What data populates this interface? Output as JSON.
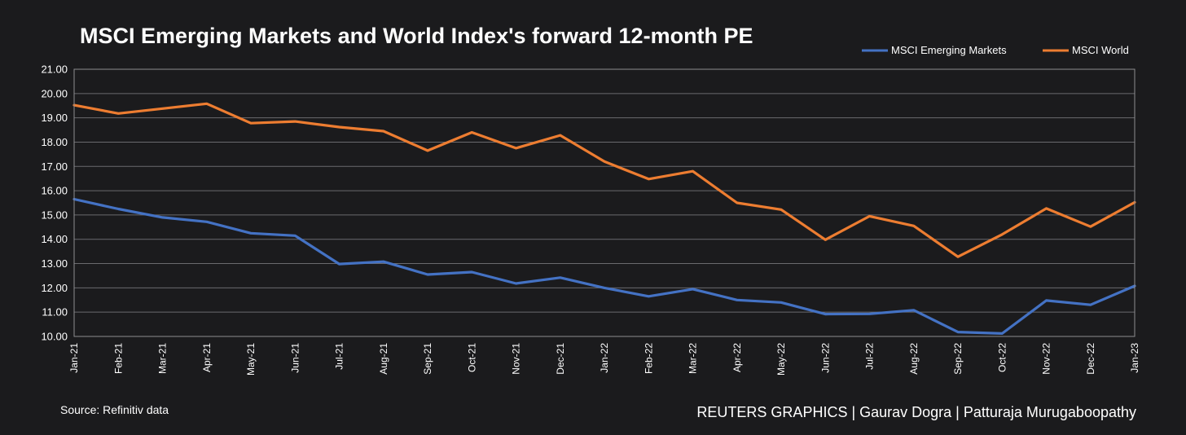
{
  "chart_data": {
    "type": "line",
    "title": "MSCI Emerging Markets and World Index's forward 12-month PE",
    "xlabel": "",
    "ylabel": "",
    "ylim": [
      10,
      21
    ],
    "yticks": [
      "21.00",
      "20.00",
      "19.00",
      "18.00",
      "17.00",
      "16.00",
      "15.00",
      "14.00",
      "13.00",
      "12.00",
      "11.00",
      "10.00"
    ],
    "categories": [
      "Jan-21",
      "Feb-21",
      "Mar-21",
      "Apr-21",
      "May-21",
      "Jun-21",
      "Jul-21",
      "Aug-21",
      "Sep-21",
      "Oct-21",
      "Nov-21",
      "Dec-21",
      "Jan-22",
      "Feb-22",
      "Mar-22",
      "Apr-22",
      "May-22",
      "Jun-22",
      "Jul-22",
      "Aug-22",
      "Sep-22",
      "Oct-22",
      "Nov-22",
      "Dec-22",
      "Jan-23"
    ],
    "series": [
      {
        "name": "MSCI Emerging Markets",
        "color": "#4472c4",
        "values": [
          15.65,
          15.25,
          14.9,
          14.72,
          14.25,
          14.15,
          12.98,
          13.08,
          12.55,
          12.65,
          12.18,
          12.42,
          12.0,
          11.65,
          11.95,
          11.5,
          11.4,
          10.92,
          10.93,
          11.08,
          10.18,
          10.12,
          11.48,
          11.3,
          12.08
        ]
      },
      {
        "name": "MSCI World",
        "color": "#ed7d31",
        "values": [
          19.52,
          19.18,
          19.38,
          19.58,
          18.78,
          18.85,
          18.62,
          18.45,
          17.65,
          18.4,
          17.75,
          18.28,
          17.2,
          16.48,
          16.8,
          15.5,
          15.22,
          13.98,
          14.95,
          14.55,
          13.28,
          14.2,
          15.27,
          14.52,
          15.52
        ]
      }
    ],
    "legend": "top-right",
    "grid": true,
    "source": "Source: Refinitiv data",
    "credit": "REUTERS GRAPHICS | Gaurav Dogra | Patturaja Murugaboopathy"
  }
}
